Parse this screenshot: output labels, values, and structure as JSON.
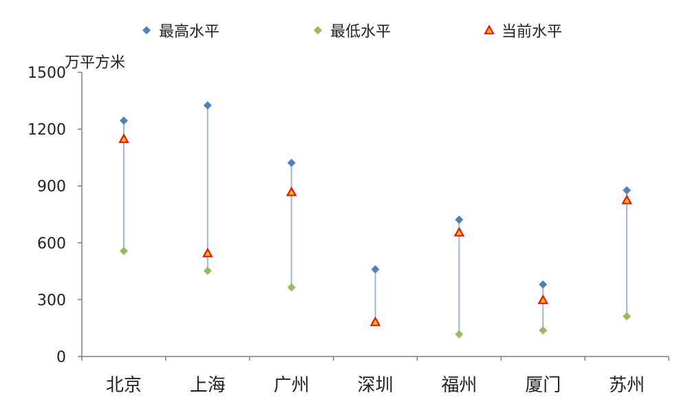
{
  "chart_data": {
    "type": "scatter",
    "ylabel": "万平方米",
    "ylim": [
      0,
      1500
    ],
    "yticks": [
      0,
      300,
      600,
      900,
      1200,
      1500
    ],
    "grid": false,
    "legend_position": "top",
    "categories": [
      "北京",
      "上海",
      "广州",
      "深圳",
      "福州",
      "厦门",
      "苏州"
    ],
    "series": [
      {
        "name": "最高水平",
        "marker": "diamond",
        "color": "#4f81bd",
        "values": [
          1245,
          1325,
          1022,
          460,
          722,
          380,
          877
        ]
      },
      {
        "name": "最低水平",
        "marker": "diamond",
        "color": "#9bbb59",
        "values": [
          557,
          452,
          365,
          180,
          117,
          138,
          212
        ]
      },
      {
        "name": "当前水平",
        "marker": "triangle",
        "color": "#ff0000",
        "fill": "#ffc000",
        "values": [
          1148,
          545,
          868,
          182,
          655,
          298,
          825
        ]
      }
    ],
    "range_line_color": "#9bb7d4"
  }
}
